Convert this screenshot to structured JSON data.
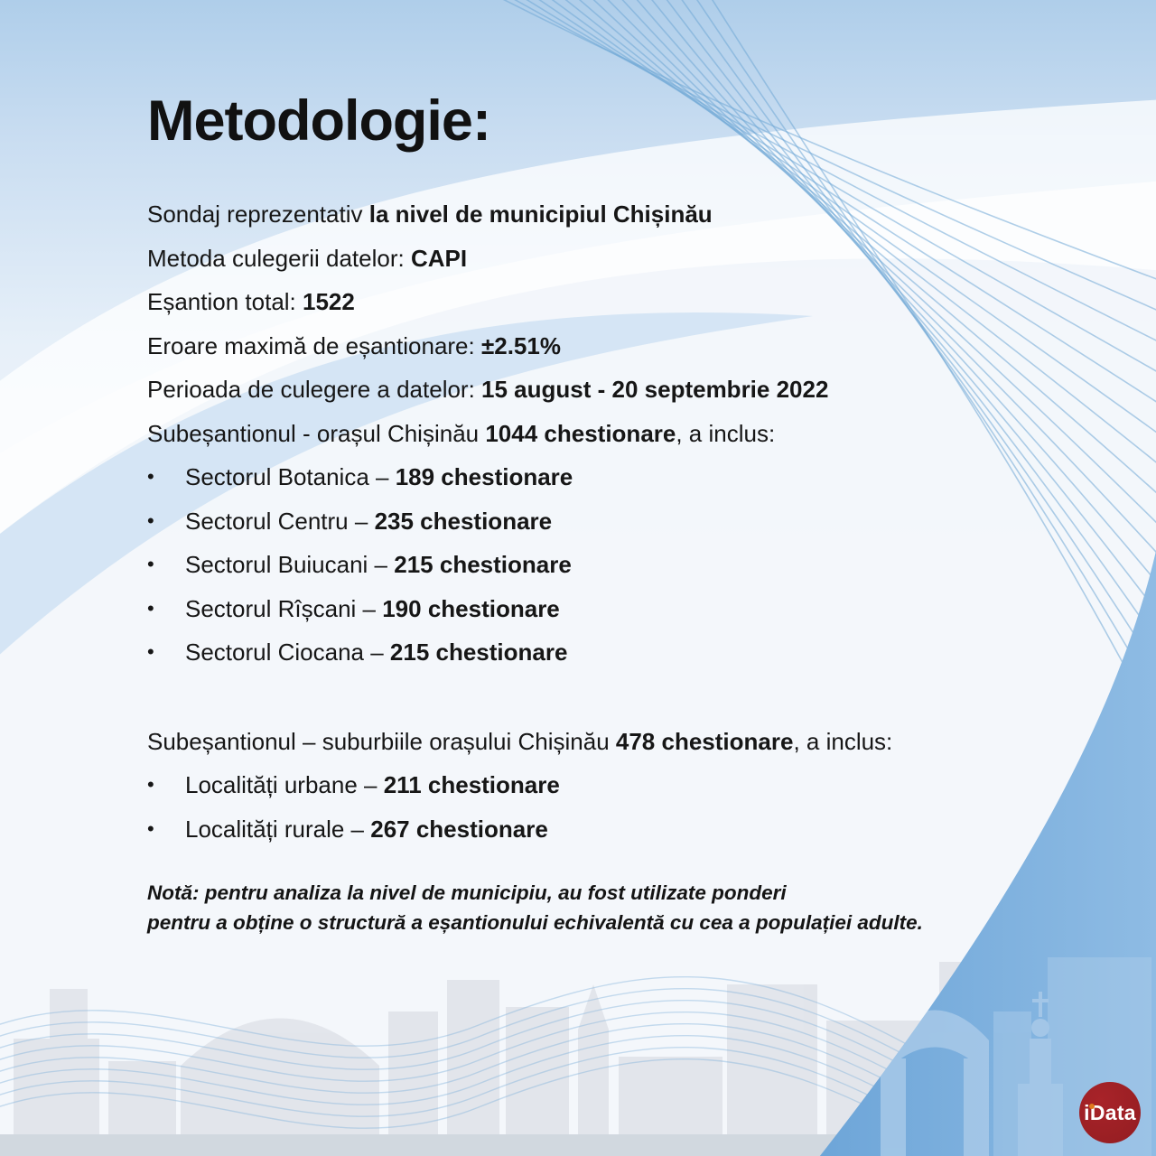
{
  "title": "Metodologie:",
  "bullet_glyph": "•",
  "intro_lines": [
    {
      "pre": "Sondaj reprezentativ ",
      "bold": "la nivel de municipiul Chișinău",
      "post": ""
    },
    {
      "pre": "Metoda culegerii datelor: ",
      "bold": "CAPI",
      "post": ""
    },
    {
      "pre": "Eșantion total: ",
      "bold": "1522",
      "post": ""
    },
    {
      "pre": "Eroare maximă de eșantionare: ",
      "bold": "±2.51%",
      "post": ""
    },
    {
      "pre": "Perioada de culegere a datelor: ",
      "bold": "15 august - 20 septembrie 2022",
      "post": ""
    },
    {
      "pre": "Subeșantionul - orașul Chișinău ",
      "bold": "1044 chestionare",
      "post": ", a inclus:"
    }
  ],
  "city_bullets": [
    {
      "pre": "Sectorul Botanica – ",
      "bold": "189 chestionare"
    },
    {
      "pre": "Sectorul Centru – ",
      "bold": "235 chestionare"
    },
    {
      "pre": "Sectorul Buiucani – ",
      "bold": "215 chestionare"
    },
    {
      "pre": "Sectorul Rîșcani – ",
      "bold": "190 chestionare"
    },
    {
      "pre": "Sectorul Ciocana – ",
      "bold": "215 chestionare"
    }
  ],
  "suburb_heading": {
    "pre": "Subeșantionul – suburbiile orașului Chișinău ",
    "bold": "478 chestionare",
    "post": ", a inclus:"
  },
  "suburb_bullets": [
    {
      "pre": "Localități urbane – ",
      "bold": "211 chestionare"
    },
    {
      "pre": "Localități rurale – ",
      "bold": "267 chestionare"
    }
  ],
  "note": {
    "line1": "Notă: pentru analiza la nivel de municipiu, au fost utilizate ponderi",
    "line2": "pentru a obține o structură a eșantionului echivalentă cu cea a populației adulte."
  },
  "logo": {
    "text": "iData"
  },
  "colors": {
    "fan_line_blue": "#6fa7d6",
    "wave_line_blue": "#86b3dc",
    "corner_blue_dark": "#6da5d8",
    "corner_blue_light": "#8fbce4",
    "skyline_gray": "#dfe3e9",
    "logo_red": "#9c2026",
    "logo_dot_orange": "#e07a1e",
    "text": "#161616"
  }
}
